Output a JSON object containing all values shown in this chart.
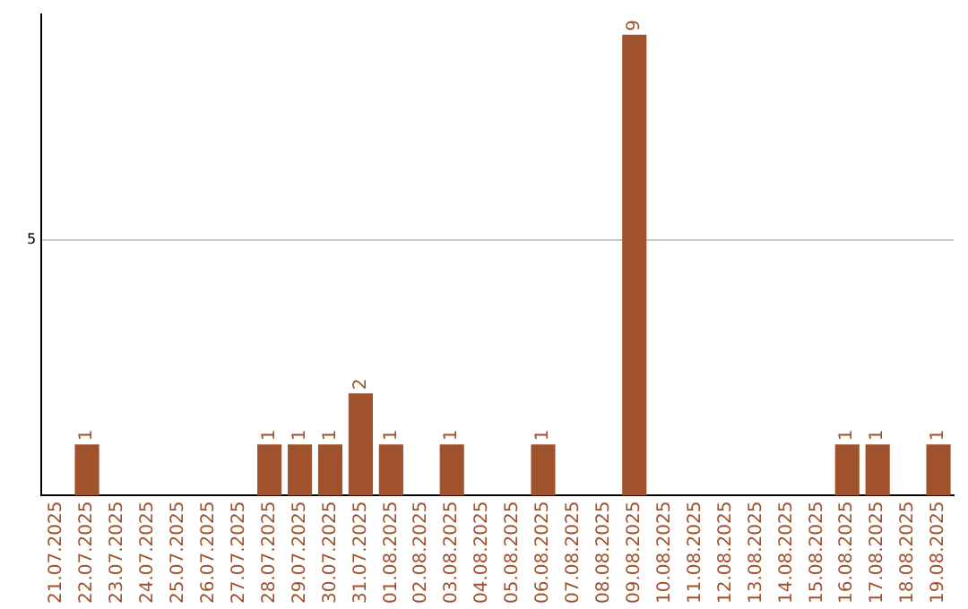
{
  "chart_data": {
    "type": "bar",
    "categories": [
      "21.07.2025",
      "22.07.2025",
      "23.07.2025",
      "24.07.2025",
      "25.07.2025",
      "26.07.2025",
      "27.07.2025",
      "28.07.2025",
      "29.07.2025",
      "30.07.2025",
      "31.07.2025",
      "01.08.2025",
      "02.08.2025",
      "03.08.2025",
      "04.08.2025",
      "05.08.2025",
      "06.08.2025",
      "07.08.2025",
      "08.08.2025",
      "09.08.2025",
      "10.08.2025",
      "11.08.2025",
      "12.08.2025",
      "13.08.2025",
      "14.08.2025",
      "15.08.2025",
      "16.08.2025",
      "17.08.2025",
      "18.08.2025",
      "19.08.2025"
    ],
    "values": [
      0,
      1,
      0,
      0,
      0,
      0,
      0,
      1,
      1,
      1,
      2,
      1,
      0,
      1,
      0,
      0,
      1,
      0,
      0,
      9,
      0,
      0,
      0,
      0,
      0,
      0,
      1,
      1,
      0,
      1
    ],
    "value_labels": [
      null,
      "1",
      null,
      null,
      null,
      null,
      null,
      "1",
      "1",
      "1",
      "2",
      "1",
      null,
      "1",
      null,
      null,
      "1",
      null,
      null,
      "9",
      null,
      null,
      null,
      null,
      null,
      null,
      "1",
      "1",
      null,
      "1"
    ],
    "color": "#a0522d",
    "ylim": [
      0,
      9.4
    ],
    "yticks": [
      5
    ],
    "grid": "y"
  }
}
